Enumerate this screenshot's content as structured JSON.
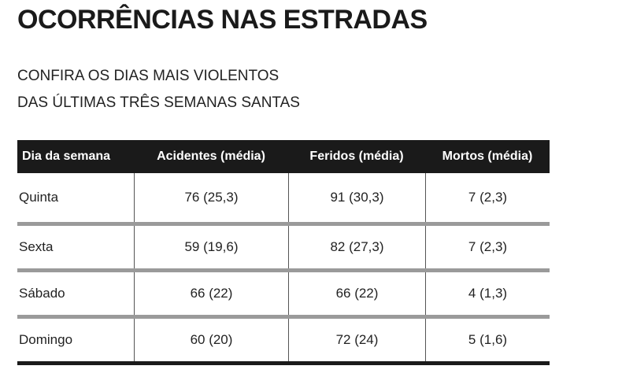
{
  "title": "OCORRÊNCIAS NAS ESTRADAS",
  "subtitle_line1": "CONFIRA OS DIAS MAIS VIOLENTOS",
  "subtitle_line2": "DAS ÚLTIMAS TRÊS SEMANAS SANTAS",
  "chart_data": {
    "type": "table",
    "columns": [
      "Dia da semana",
      "Acidentes (média)",
      "Feridos (média)",
      "Mortos (média)"
    ],
    "rows": [
      {
        "day": "Quinta",
        "acidentes": "76 (25,3)",
        "feridos": "91 (30,3)",
        "mortos": "7 (2,3)"
      },
      {
        "day": "Sexta",
        "acidentes": "59 (19,6)",
        "feridos": "82 (27,3)",
        "mortos": "7 (2,3)"
      },
      {
        "day": "Sábado",
        "acidentes": "66 (22)",
        "feridos": "66 (22)",
        "mortos": "4 (1,3)"
      },
      {
        "day": "Domingo",
        "acidentes": "60 (20)",
        "feridos": "72 (24)",
        "mortos": "5 (1,6)"
      }
    ]
  }
}
